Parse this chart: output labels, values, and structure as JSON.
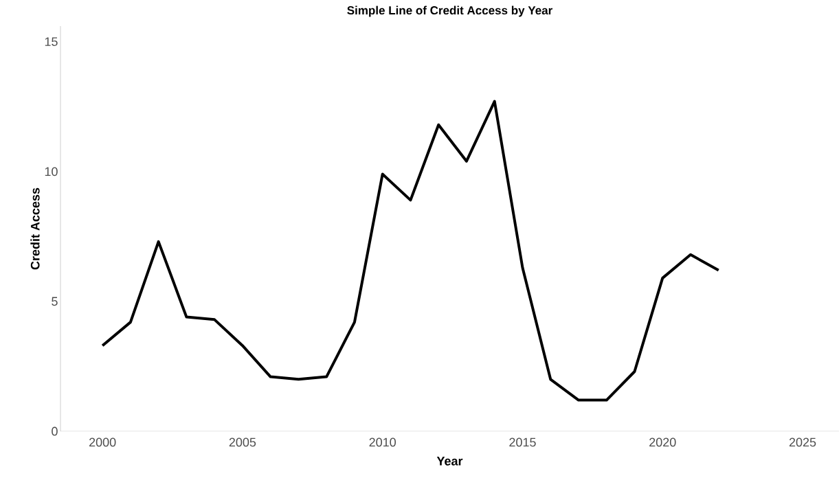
{
  "chart_data": {
    "type": "line",
    "title": "Simple Line of Credit Access by Year",
    "xlabel": "Year",
    "ylabel": "Credit Access",
    "x": [
      2000,
      2001,
      2002,
      2003,
      2004,
      2005,
      2006,
      2007,
      2008,
      2009,
      2010,
      2011,
      2012,
      2013,
      2014,
      2015,
      2016,
      2017,
      2018,
      2019,
      2020,
      2021,
      2022
    ],
    "series": [
      {
        "color": "#000000",
        "values": [
          3.3,
          4.2,
          7.3,
          4.4,
          4.3,
          3.3,
          2.1,
          2.0,
          2.1,
          4.2,
          9.9,
          8.9,
          11.8,
          10.4,
          12.7,
          6.3,
          2.0,
          1.2,
          1.2,
          2.3,
          5.9,
          6.8,
          6.2
        ]
      }
    ],
    "xlim": [
      1998.5,
      2026.3
    ],
    "ylim": [
      0,
      15.6
    ],
    "xticks": [
      2000,
      2005,
      2010,
      2015,
      2020,
      2025
    ],
    "yticks": [
      0,
      5,
      10,
      15
    ],
    "grid": false,
    "marker": "none",
    "line_style": "solid"
  }
}
